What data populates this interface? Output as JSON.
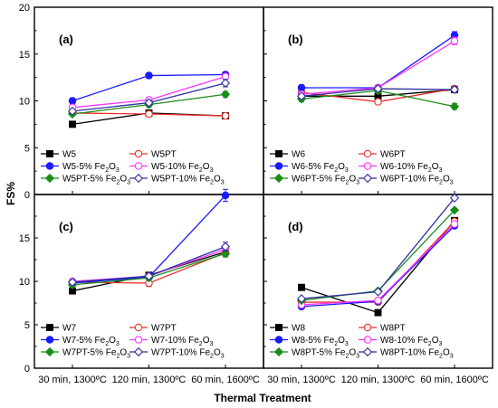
{
  "figure": {
    "ylabel": "FS%",
    "xlabel": "Thermal Treatment",
    "categories": [
      "30 min, 1300ºC",
      "120 min, 1300ºC",
      "60 min, 1600ºC"
    ],
    "yticks": [
      "0",
      "5",
      "10",
      "15",
      "20"
    ],
    "colors": {
      "black": "#000000",
      "red": "#e8322a",
      "blue": "#1a1aff",
      "magenta": "#ff33ff",
      "green": "#1a8c1a",
      "navy": "#2f2f9f"
    }
  },
  "chart_data": [
    {
      "type": "line",
      "label": "(a)",
      "ylim": [
        0,
        20
      ],
      "grid": false,
      "categories": [
        "30 min, 1300ºC",
        "120 min, 1300ºC",
        "60 min, 1600ºC"
      ],
      "series": [
        {
          "name": "W5",
          "values": [
            7.5,
            8.7,
            8.4
          ],
          "err": [
            0.2,
            0.3,
            0.2
          ],
          "color": "#000000",
          "marker": "square-filled"
        },
        {
          "name": "W5PT",
          "values": [
            8.7,
            8.6,
            8.4
          ],
          "err": [
            0.2,
            0.3,
            0.2
          ],
          "color": "#e8322a",
          "marker": "circle-open"
        },
        {
          "name": "W5-5% Fe2O3",
          "values": [
            10.0,
            12.7,
            12.8
          ],
          "err": [
            0.3,
            0.3,
            0.3
          ],
          "color": "#1a1aff",
          "marker": "circle-filled"
        },
        {
          "name": "W5-10% Fe2O3",
          "values": [
            9.3,
            10.1,
            12.6
          ],
          "err": [
            0.3,
            0.3,
            0.3
          ],
          "color": "#ff33ff",
          "marker": "circle-open"
        },
        {
          "name": "W5PT-5% Fe2O3",
          "values": [
            8.6,
            9.6,
            10.7
          ],
          "err": [
            0.2,
            0.3,
            0.3
          ],
          "color": "#1a8c1a",
          "marker": "diamond-filled"
        },
        {
          "name": "W5PT-10% Fe2O3",
          "values": [
            8.9,
            9.8,
            11.9
          ],
          "err": [
            0.2,
            0.3,
            0.4
          ],
          "color": "#2f2f9f",
          "marker": "diamond-open"
        }
      ]
    },
    {
      "type": "line",
      "label": "(b)",
      "ylim": [
        0,
        20
      ],
      "grid": false,
      "categories": [
        "30 min, 1300ºC",
        "120 min, 1300ºC",
        "60 min, 1600ºC"
      ],
      "series": [
        {
          "name": "W6",
          "values": [
            10.5,
            10.5,
            11.2
          ],
          "err": [
            0.3,
            0.3,
            0.3
          ],
          "color": "#000000",
          "marker": "square-filled"
        },
        {
          "name": "W6PT",
          "values": [
            10.9,
            9.9,
            11.3
          ],
          "err": [
            0.3,
            0.3,
            0.3
          ],
          "color": "#e8322a",
          "marker": "circle-open"
        },
        {
          "name": "W6-5% Fe2O3",
          "values": [
            11.4,
            11.4,
            17.0
          ],
          "err": [
            0.3,
            0.3,
            0.4
          ],
          "color": "#1a1aff",
          "marker": "circle-filled"
        },
        {
          "name": "W6-10% Fe2O3",
          "values": [
            10.7,
            11.4,
            16.4
          ],
          "err": [
            0.3,
            0.3,
            0.4
          ],
          "color": "#ff33ff",
          "marker": "circle-open"
        },
        {
          "name": "W6PT-5% Fe2O3",
          "values": [
            10.2,
            11.1,
            9.4
          ],
          "err": [
            0.3,
            0.3,
            0.3
          ],
          "color": "#1a8c1a",
          "marker": "diamond-filled"
        },
        {
          "name": "W6PT-10% Fe2O3",
          "values": [
            10.5,
            11.3,
            11.2
          ],
          "err": [
            0.3,
            0.3,
            0.3
          ],
          "color": "#2f2f9f",
          "marker": "diamond-open"
        }
      ]
    },
    {
      "type": "line",
      "label": "(c)",
      "ylim": [
        0,
        20
      ],
      "grid": false,
      "categories": [
        "30 min, 1300ºC",
        "120 min, 1300ºC",
        "60 min, 1600ºC"
      ],
      "series": [
        {
          "name": "W7",
          "values": [
            8.9,
            10.7,
            13.4
          ],
          "err": [
            0.3,
            0.3,
            0.4
          ],
          "color": "#000000",
          "marker": "square-filled"
        },
        {
          "name": "W7PT",
          "values": [
            9.9,
            9.8,
            13.3
          ],
          "err": [
            0.3,
            0.4,
            0.4
          ],
          "color": "#e8322a",
          "marker": "circle-open"
        },
        {
          "name": "W7-5% Fe2O3",
          "values": [
            9.8,
            10.5,
            19.9
          ],
          "err": [
            0.3,
            0.3,
            0.7
          ],
          "color": "#1a1aff",
          "marker": "circle-filled"
        },
        {
          "name": "W7-10% Fe2O3",
          "values": [
            10.0,
            10.6,
            13.7
          ],
          "err": [
            0.3,
            0.3,
            0.4
          ],
          "color": "#ff33ff",
          "marker": "circle-open"
        },
        {
          "name": "W7PT-5% Fe2O3",
          "values": [
            9.6,
            10.4,
            13.2
          ],
          "err": [
            0.3,
            0.3,
            0.4
          ],
          "color": "#1a8c1a",
          "marker": "diamond-filled"
        },
        {
          "name": "W7PT-10% Fe2O3",
          "values": [
            9.9,
            10.6,
            14.0
          ],
          "err": [
            0.3,
            0.3,
            0.5
          ],
          "color": "#2f2f9f",
          "marker": "diamond-open"
        }
      ]
    },
    {
      "type": "line",
      "label": "(d)",
      "ylim": [
        0,
        20
      ],
      "grid": false,
      "categories": [
        "30 min, 1300ºC",
        "120 min, 1300ºC",
        "60 min, 1600ºC"
      ],
      "series": [
        {
          "name": "W8",
          "values": [
            9.3,
            6.4,
            17.0
          ],
          "err": [
            0.1,
            0.1,
            0.1
          ],
          "color": "#000000",
          "marker": "square-filled"
        },
        {
          "name": "W8PT",
          "values": [
            7.6,
            7.6,
            16.9
          ],
          "err": [
            0.1,
            0.1,
            0.1
          ],
          "color": "#e8322a",
          "marker": "circle-open"
        },
        {
          "name": "W8-5% Fe2O3",
          "values": [
            7.1,
            7.7,
            16.4
          ],
          "err": [
            0.1,
            0.1,
            0.1
          ],
          "color": "#1a1aff",
          "marker": "circle-filled"
        },
        {
          "name": "W8-10% Fe2O3",
          "values": [
            7.3,
            7.8,
            16.6
          ],
          "err": [
            0.1,
            0.1,
            0.1
          ],
          "color": "#ff33ff",
          "marker": "circle-open"
        },
        {
          "name": "W8PT-5% Fe2O3",
          "values": [
            7.8,
            8.9,
            18.2
          ],
          "err": [
            0.1,
            0.1,
            0.1
          ],
          "color": "#1a8c1a",
          "marker": "diamond-filled"
        },
        {
          "name": "W8PT-10% Fe2O3",
          "values": [
            8.0,
            8.8,
            19.6
          ],
          "err": [
            0.1,
            0.1,
            0.1
          ],
          "color": "#2f2f9f",
          "marker": "diamond-open"
        }
      ]
    }
  ]
}
